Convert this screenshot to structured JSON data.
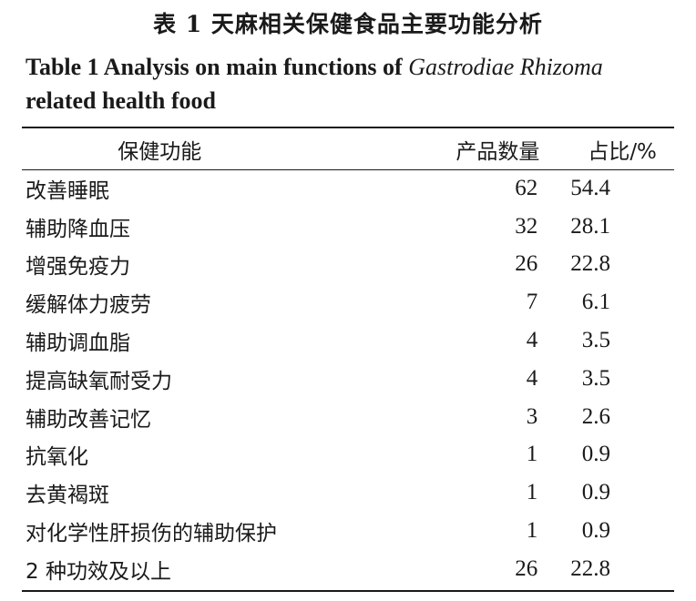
{
  "title_cn": "表 1    天麻相关保健食品主要功能分析",
  "title_en_prefix": "Table 1    Analysis on main functions of ",
  "title_en_italic": "Gastrodiae Rhizoma",
  "title_en_suffix": "related health food",
  "table": {
    "headers": [
      "保健功能",
      "产品数量",
      "占比/%"
    ],
    "rows": [
      {
        "function": "改善睡眠",
        "count": "62",
        "percent": "54.4"
      },
      {
        "function": "辅助降血压",
        "count": "32",
        "percent": "28.1"
      },
      {
        "function": "增强免疫力",
        "count": "26",
        "percent": "22.8"
      },
      {
        "function": "缓解体力疲劳",
        "count": "7",
        "percent": "6.1"
      },
      {
        "function": "辅助调血脂",
        "count": "4",
        "percent": "3.5"
      },
      {
        "function": "提高缺氧耐受力",
        "count": "4",
        "percent": "3.5"
      },
      {
        "function": "辅助改善记忆",
        "count": "3",
        "percent": "2.6"
      },
      {
        "function": "抗氧化",
        "count": "1",
        "percent": "0.9"
      },
      {
        "function": "去黄褐斑",
        "count": "1",
        "percent": "0.9"
      },
      {
        "function": "对化学性肝损伤的辅助保护",
        "count": "1",
        "percent": "0.9"
      },
      {
        "function": "2 种功效及以上",
        "count": "26",
        "percent": "22.8"
      }
    ]
  }
}
